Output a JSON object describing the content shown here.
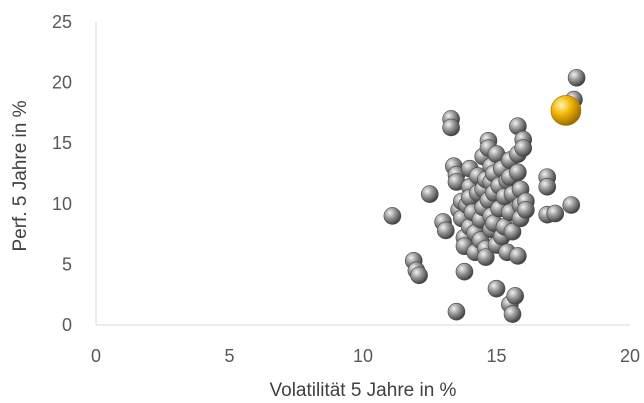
{
  "chart_data": {
    "type": "scatter",
    "title": "",
    "xlabel": "Volatilität 5 Jahre in %",
    "ylabel": "Perf.  5 Jahre in %",
    "xlim": [
      0,
      20
    ],
    "ylim": [
      0,
      25
    ],
    "x_ticks": [
      "0",
      "5",
      "10",
      "15",
      "20"
    ],
    "y_ticks": [
      "0",
      "5",
      "10",
      "15",
      "20",
      "25"
    ],
    "grid": false,
    "legend": "none",
    "colors": {
      "series": "#8c8c8c",
      "highlight": "#f2b705",
      "axis": "#d9d9d9",
      "tick_text": "#595959"
    },
    "series": [
      {
        "values": [
          [
            11.1,
            9.0
          ],
          [
            11.9,
            5.3
          ],
          [
            12.0,
            4.5
          ],
          [
            12.1,
            4.1
          ],
          [
            12.5,
            10.8
          ],
          [
            13.0,
            8.5
          ],
          [
            13.1,
            7.8
          ],
          [
            13.3,
            17.0
          ],
          [
            13.3,
            16.3
          ],
          [
            13.4,
            13.1
          ],
          [
            13.5,
            12.4
          ],
          [
            13.5,
            11.8
          ],
          [
            13.5,
            1.1
          ],
          [
            13.6,
            9.5
          ],
          [
            13.7,
            10.2
          ],
          [
            13.7,
            8.8
          ],
          [
            13.8,
            7.2
          ],
          [
            13.8,
            6.5
          ],
          [
            13.8,
            4.4
          ],
          [
            13.9,
            9.9
          ],
          [
            14.0,
            12.9
          ],
          [
            14.0,
            11.4
          ],
          [
            14.0,
            10.5
          ],
          [
            14.0,
            8.1
          ],
          [
            14.1,
            9.3
          ],
          [
            14.2,
            7.6
          ],
          [
            14.2,
            6.0
          ],
          [
            14.3,
            12.3
          ],
          [
            14.3,
            10.9
          ],
          [
            14.4,
            8.7
          ],
          [
            14.4,
            7.0
          ],
          [
            14.5,
            13.9
          ],
          [
            14.5,
            11.2
          ],
          [
            14.5,
            9.7
          ],
          [
            14.6,
            12.0
          ],
          [
            14.6,
            6.3
          ],
          [
            14.6,
            5.6
          ],
          [
            14.7,
            15.2
          ],
          [
            14.7,
            14.6
          ],
          [
            14.7,
            10.3
          ],
          [
            14.8,
            13.1
          ],
          [
            14.8,
            11.8
          ],
          [
            14.8,
            9.0
          ],
          [
            14.8,
            7.9
          ],
          [
            14.9,
            12.5
          ],
          [
            14.9,
            10.9
          ],
          [
            14.9,
            8.4
          ],
          [
            15.0,
            14.1
          ],
          [
            15.0,
            6.6
          ],
          [
            15.0,
            3.0
          ],
          [
            15.1,
            11.5
          ],
          [
            15.1,
            9.6
          ],
          [
            15.2,
            12.9
          ],
          [
            15.2,
            7.3
          ],
          [
            15.3,
            10.6
          ],
          [
            15.3,
            8.1
          ],
          [
            15.4,
            11.9
          ],
          [
            15.4,
            6.0
          ],
          [
            15.5,
            13.6
          ],
          [
            15.5,
            12.2
          ],
          [
            15.5,
            9.3
          ],
          [
            15.5,
            1.7
          ],
          [
            15.6,
            10.8
          ],
          [
            15.6,
            7.7
          ],
          [
            15.6,
            0.9
          ],
          [
            15.7,
            2.4
          ],
          [
            15.8,
            16.4
          ],
          [
            15.8,
            14.1
          ],
          [
            15.8,
            12.6
          ],
          [
            15.8,
            5.7
          ],
          [
            15.9,
            11.2
          ],
          [
            15.9,
            9.9
          ],
          [
            15.9,
            8.8
          ],
          [
            16.0,
            15.3
          ],
          [
            16.0,
            14.6
          ],
          [
            16.1,
            10.2
          ],
          [
            16.1,
            9.5
          ],
          [
            16.9,
            12.2
          ],
          [
            16.9,
            11.4
          ],
          [
            16.9,
            9.1
          ],
          [
            17.2,
            9.2
          ],
          [
            17.8,
            9.9
          ],
          [
            17.9,
            18.6
          ],
          [
            18.0,
            20.4
          ]
        ]
      },
      {
        "highlight": true,
        "values": [
          [
            17.6,
            17.7
          ]
        ]
      }
    ]
  }
}
